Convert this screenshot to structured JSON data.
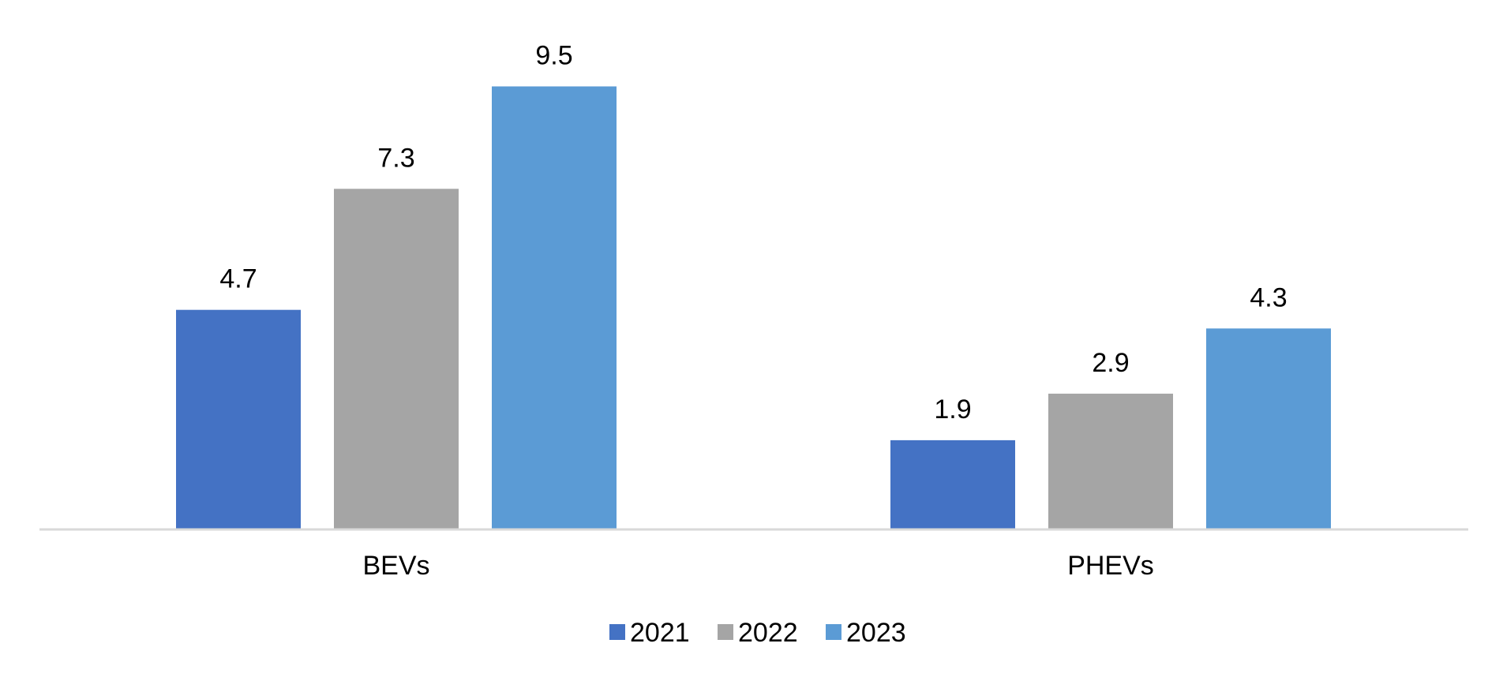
{
  "chart_data": {
    "type": "bar",
    "title": "",
    "xlabel": "",
    "ylabel": "",
    "categories": [
      "BEVs",
      "PHEVs"
    ],
    "series": [
      {
        "name": "2021",
        "color": "#4472C4",
        "values": [
          4.7,
          1.9
        ]
      },
      {
        "name": "2022",
        "color": "#A5A5A5",
        "values": [
          7.3,
          2.9
        ]
      },
      {
        "name": "2023",
        "color": "#5B9BD5",
        "values": [
          9.5,
          4.3
        ]
      }
    ],
    "ylim": [
      0,
      10
    ],
    "grid": false,
    "y_axis_visible": false,
    "data_labels": true,
    "legend_position": "bottom"
  }
}
